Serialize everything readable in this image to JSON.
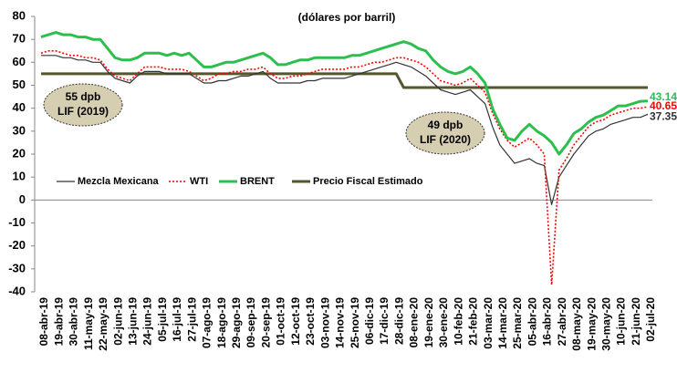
{
  "chart_data": {
    "type": "line",
    "subtitle": "(dólares por barril)",
    "categories": [
      "08-abr-19",
      null,
      "19-abr-19",
      null,
      "30-abr-19",
      null,
      "11-may-19",
      null,
      "22-may-19",
      null,
      "02-jun-19",
      null,
      "13-jun-19",
      null,
      "24-jun-19",
      null,
      "05-jul-19",
      null,
      "16-jul-19",
      null,
      "27-jul-19",
      null,
      "07-ago-19",
      null,
      "18-ago-19",
      null,
      "29-ago-19",
      null,
      "09-sep-19",
      null,
      "20-sep-19",
      null,
      "01-oct-19",
      null,
      "12-oct-19",
      null,
      "23-oct-19",
      null,
      "03-nov-19",
      null,
      "14-nov-19",
      null,
      "25-nov-19",
      null,
      "06-dic-19",
      null,
      "17-dic-19",
      null,
      "28-dic-19",
      null,
      "08-ene-20",
      null,
      "19-ene-20",
      null,
      "30-ene-20",
      null,
      "10-feb-20",
      null,
      "21-feb-20",
      null,
      "03-mar-20",
      null,
      "14-mar-20",
      null,
      "25-mar-20",
      null,
      "05-abr-20",
      null,
      "16-abr-20",
      null,
      "27-abr-20",
      null,
      "08-may-20",
      null,
      "19-may-20",
      null,
      "30-may-20",
      null,
      "10-jun-20",
      null,
      "21-jun-20",
      null,
      "02-jul-20"
    ],
    "series": [
      {
        "name": "Mezcla Mexicana",
        "color": "#333333",
        "style": "thin",
        "values": [
          63,
          63,
          63,
          62,
          62,
          61,
          61,
          60,
          60,
          56,
          53,
          52,
          51,
          54,
          56,
          56,
          56,
          55,
          55,
          55,
          55,
          53,
          51,
          51,
          52,
          52,
          53,
          54,
          54,
          55,
          56,
          53,
          51,
          51,
          51,
          51,
          52,
          52,
          53,
          53,
          53,
          53,
          54,
          55,
          56,
          57,
          58,
          59,
          60,
          59,
          58,
          56,
          54,
          51,
          48,
          47,
          46,
          47,
          48,
          45,
          42,
          32,
          24,
          20,
          16,
          17,
          18,
          16,
          15,
          -2,
          10,
          15,
          20,
          24,
          28,
          30,
          31,
          33,
          34,
          35,
          36,
          36,
          37.35
        ]
      },
      {
        "name": "WTI",
        "color": "#ff0000",
        "style": "dotted",
        "values": [
          64,
          65,
          65,
          64,
          63,
          63,
          62,
          62,
          61,
          57,
          54,
          53,
          52,
          55,
          58,
          58,
          58,
          57,
          57,
          57,
          56,
          54,
          52,
          53,
          55,
          55,
          56,
          56,
          57,
          57,
          58,
          55,
          53,
          53,
          54,
          54,
          55,
          56,
          57,
          57,
          57,
          57,
          58,
          58,
          59,
          60,
          60,
          61,
          62,
          62,
          61,
          60,
          58,
          55,
          52,
          51,
          50,
          51,
          53,
          50,
          47,
          38,
          31,
          26,
          23,
          25,
          27,
          24,
          20,
          -37,
          13,
          18,
          24,
          28,
          32,
          34,
          35,
          37,
          38,
          39,
          40,
          40,
          40.65
        ]
      },
      {
        "name": "BRENT",
        "color": "#2dbf4e",
        "style": "thick",
        "values": [
          71,
          72,
          73,
          72,
          72,
          71,
          71,
          70,
          70,
          66,
          62,
          61,
          61,
          62,
          64,
          64,
          64,
          63,
          64,
          63,
          64,
          61,
          58,
          58,
          59,
          60,
          60,
          61,
          62,
          63,
          64,
          62,
          59,
          59,
          60,
          61,
          61,
          62,
          62,
          62,
          62,
          62,
          63,
          63,
          64,
          65,
          66,
          67,
          68,
          69,
          68,
          66,
          65,
          61,
          58,
          56,
          55,
          56,
          58,
          55,
          51,
          40,
          33,
          27,
          26,
          30,
          33,
          30,
          28,
          25,
          20,
          24,
          29,
          31,
          34,
          36,
          37,
          39,
          41,
          41,
          42,
          43,
          43.14
        ]
      },
      {
        "name": "Precio Fiscal Estimado",
        "color": "#55552e",
        "style": "thick",
        "values": [
          55,
          55,
          55,
          55,
          55,
          55,
          55,
          55,
          55,
          55,
          55,
          55,
          55,
          55,
          55,
          55,
          55,
          55,
          55,
          55,
          55,
          55,
          55,
          55,
          55,
          55,
          55,
          55,
          55,
          55,
          55,
          55,
          55,
          55,
          55,
          55,
          55,
          55,
          55,
          55,
          55,
          55,
          55,
          55,
          55,
          55,
          55,
          55,
          55,
          49,
          49,
          49,
          49,
          49,
          49,
          49,
          49,
          49,
          49,
          49,
          49,
          49,
          49,
          49,
          49,
          49,
          49,
          49,
          49,
          49,
          49,
          49,
          49,
          49,
          49,
          49,
          49,
          49,
          49,
          49,
          49,
          49,
          49
        ]
      }
    ],
    "ylim": [
      -40,
      80
    ],
    "yticks": [
      -40,
      -30,
      -20,
      -10,
      0,
      10,
      20,
      30,
      40,
      50,
      60,
      70,
      80
    ],
    "annotations": [
      {
        "lines": [
          "55 dpb",
          "LIF (2019)"
        ]
      },
      {
        "lines": [
          "49 dpb",
          "LIF (2020)"
        ]
      }
    ],
    "end_labels": true
  }
}
